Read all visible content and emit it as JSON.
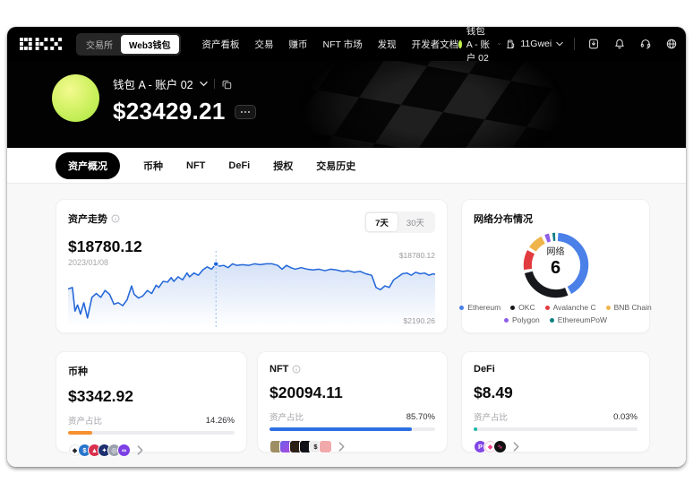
{
  "nav": {
    "logo_label": "OKX",
    "toggle": {
      "exchange": "交易所",
      "web3_wallet": "Web3钱包"
    },
    "links": [
      "资产看板",
      "交易",
      "赚币",
      "NFT 市场",
      "发现",
      "开发者文档"
    ],
    "wallet_selector": "钱包 A - 账户 02",
    "gas_price": "11Gwei",
    "icon_names": [
      "download-app-icon",
      "notifications-bell-icon",
      "support-headset-icon",
      "language-globe-icon"
    ]
  },
  "hero": {
    "wallet_name": "钱包 A - 账户 02",
    "balance": "$23429.21"
  },
  "tabs": [
    {
      "label": "资产概况",
      "active": true
    },
    {
      "label": "币种",
      "active": false
    },
    {
      "label": "NFT",
      "active": false
    },
    {
      "label": "DeFi",
      "active": false
    },
    {
      "label": "授权",
      "active": false
    },
    {
      "label": "交易历史",
      "active": false
    }
  ],
  "trend_card": {
    "title": "资产走势",
    "value": "$18780.12",
    "date": "2023/01/08",
    "ranges": [
      {
        "label": "7天",
        "active": true
      },
      {
        "label": "30天",
        "active": false
      }
    ],
    "max_label": "$18780.12",
    "min_label": "$2190.26"
  },
  "chart_data": {
    "type": "line",
    "title": "资产走势",
    "x_range": [
      "2023/01/08",
      "7天"
    ],
    "y_top_label": "$18780.12",
    "y_bottom_label": "$2190.26",
    "cursor": {
      "x": 40.3,
      "y": 17.2
    },
    "series": [
      {
        "name": "资产走势",
        "color": "#2468d8",
        "fill": "rgba(64,122,219,0.22)",
        "points": [
          [
            0,
            50
          ],
          [
            1.2,
            48
          ],
          [
            1.9,
            79
          ],
          [
            2.6,
            71
          ],
          [
            3.4,
            83
          ],
          [
            4.3,
            68
          ],
          [
            5.3,
            88
          ],
          [
            6.5,
            61
          ],
          [
            7.7,
            56
          ],
          [
            8.9,
            61
          ],
          [
            10.1,
            52
          ],
          [
            11.3,
            57
          ],
          [
            12.5,
            70
          ],
          [
            13.7,
            68
          ],
          [
            14.9,
            72
          ],
          [
            16.1,
            64
          ],
          [
            17.3,
            46
          ],
          [
            18,
            57
          ],
          [
            19.2,
            62
          ],
          [
            20.4,
            59
          ],
          [
            21.6,
            52
          ],
          [
            22.8,
            56
          ],
          [
            24,
            45
          ],
          [
            24.7,
            48
          ],
          [
            25.9,
            40
          ],
          [
            27.1,
            41
          ],
          [
            28.1,
            35
          ],
          [
            28.8,
            40
          ],
          [
            30,
            34
          ],
          [
            31.2,
            38
          ],
          [
            32.4,
            29
          ],
          [
            33.1,
            34
          ],
          [
            34.3,
            29
          ],
          [
            35.5,
            32
          ],
          [
            36.7,
            25
          ],
          [
            37.9,
            21
          ],
          [
            39.1,
            24
          ],
          [
            40.3,
            17
          ],
          [
            41.2,
            20
          ],
          [
            42.4,
            19
          ],
          [
            43.6,
            22
          ],
          [
            44.8,
            17
          ],
          [
            46,
            19
          ],
          [
            47.5,
            18
          ],
          [
            49.2,
            19
          ],
          [
            50.8,
            17
          ],
          [
            52.3,
            18
          ],
          [
            54,
            17
          ],
          [
            55.6,
            17
          ],
          [
            57.1,
            19
          ],
          [
            58.3,
            24
          ],
          [
            59.5,
            19
          ],
          [
            60.7,
            22
          ],
          [
            61.9,
            24
          ],
          [
            63.5,
            22
          ],
          [
            65.2,
            24
          ],
          [
            66.7,
            25
          ],
          [
            68.3,
            24
          ],
          [
            70,
            26
          ],
          [
            71.5,
            24
          ],
          [
            73.1,
            25
          ],
          [
            74.8,
            27
          ],
          [
            76.3,
            26
          ],
          [
            77.9,
            28
          ],
          [
            79.6,
            27
          ],
          [
            81.1,
            30
          ],
          [
            82.7,
            32
          ],
          [
            83.9,
            48
          ],
          [
            85.1,
            51
          ],
          [
            86.3,
            46
          ],
          [
            87.5,
            48
          ],
          [
            88.7,
            38
          ],
          [
            89.9,
            34
          ],
          [
            91.1,
            30
          ],
          [
            92.3,
            29
          ],
          [
            93.5,
            32
          ],
          [
            94.7,
            28
          ],
          [
            95.9,
            30
          ],
          [
            97.1,
            29
          ],
          [
            98.3,
            32
          ],
          [
            99.5,
            30
          ],
          [
            100,
            31
          ]
        ]
      }
    ]
  },
  "network_card": {
    "title": "网络分布情况",
    "center_label": "网络",
    "center_value": "6",
    "chart_data": {
      "type": "pie",
      "segments": [
        {
          "name": "Ethereum",
          "color": "#4a80e8",
          "fraction": 0.41
        },
        {
          "name": "OKC",
          "color": "#17181c",
          "fraction": 0.27
        },
        {
          "name": "Avalanche C",
          "color": "#e23b3f",
          "fraction": 0.1
        },
        {
          "name": "BNB Chain",
          "color": "#efb54b",
          "fraction": 0.08
        },
        {
          "name": "Polygon",
          "color": "#8f5fe8",
          "fraction": 0.022
        },
        {
          "name": "EthereumPoW",
          "color": "#0d7f84",
          "fraction": 0.013
        }
      ]
    }
  },
  "asset_cards": [
    {
      "title": "币种",
      "has_info": false,
      "value": "$3342.92",
      "ratio_label": "资产占比",
      "percent": "14.26%",
      "percent_value": 14.26,
      "bar_color": "#f7902e",
      "icon_style": "coin",
      "assets": [
        {
          "name": "eth-token-icon",
          "bg": "#ffffff",
          "fg": "#26282e",
          "glyph": "◆",
          "border": "#e3e3e3"
        },
        {
          "name": "usdc-token-icon",
          "bg": "#2775ca",
          "fg": "#ffffff",
          "glyph": "$"
        },
        {
          "name": "avax-token-icon",
          "bg": "#d9304e",
          "fg": "#ffffff",
          "glyph": "▲"
        },
        {
          "name": "navy-token-icon",
          "bg": "#1d2f6f",
          "fg": "#ffffff",
          "glyph": "✦"
        },
        {
          "name": "gray-token-icon",
          "bg": "#9aa0ab",
          "fg": "#ffffff",
          "glyph": "◎"
        },
        {
          "name": "polygon-token-icon",
          "bg": "#7b3fe4",
          "fg": "#ffffff",
          "glyph": "∞"
        }
      ]
    },
    {
      "title": "NFT",
      "has_info": true,
      "value": "$20094.11",
      "ratio_label": "资产占比",
      "percent": "85.70%",
      "percent_value": 85.7,
      "bar_color": "#2d6fe3",
      "icon_style": "tile",
      "assets": [
        {
          "name": "nft-thumb-ape",
          "bg": "#9d8f63",
          "fg": "#4a3b22",
          "glyph": ""
        },
        {
          "name": "nft-thumb-gradient",
          "bg": "linear-gradient(135deg,#6a5be8,#b14be0)",
          "fg": "#fff",
          "glyph": ""
        },
        {
          "name": "nft-thumb-dark",
          "bg": "#2c2016",
          "fg": "#caa54a",
          "glyph": ""
        },
        {
          "name": "nft-thumb-black",
          "bg": "#101218",
          "fg": "#fff",
          "glyph": ""
        },
        {
          "name": "nft-thumb-dollar",
          "bg": "#ededed",
          "fg": "#111",
          "glyph": "$"
        },
        {
          "name": "nft-thumb-pink",
          "bg": "#f2a9ac",
          "fg": "#d2452f",
          "glyph": ""
        }
      ]
    },
    {
      "title": "DeFi",
      "has_info": false,
      "value": "$8.49",
      "ratio_label": "资产占比",
      "percent": "0.03%",
      "percent_value": 0.03,
      "bar_color": "#14b8a6",
      "icon_style": "coin",
      "assets": [
        {
          "name": "defi-protocol-p-icon",
          "bg": "#8247e5",
          "fg": "#ffffff",
          "glyph": "P"
        },
        {
          "name": "defi-protocol-pink-icon",
          "bg": "#ffffff",
          "fg": "#f43f8e",
          "glyph": "◆",
          "border": "#f0c4d6"
        },
        {
          "name": "defi-protocol-dark-icon",
          "bg": "#111111",
          "fg": "#f43f8e",
          "glyph": "∿"
        }
      ]
    }
  ]
}
